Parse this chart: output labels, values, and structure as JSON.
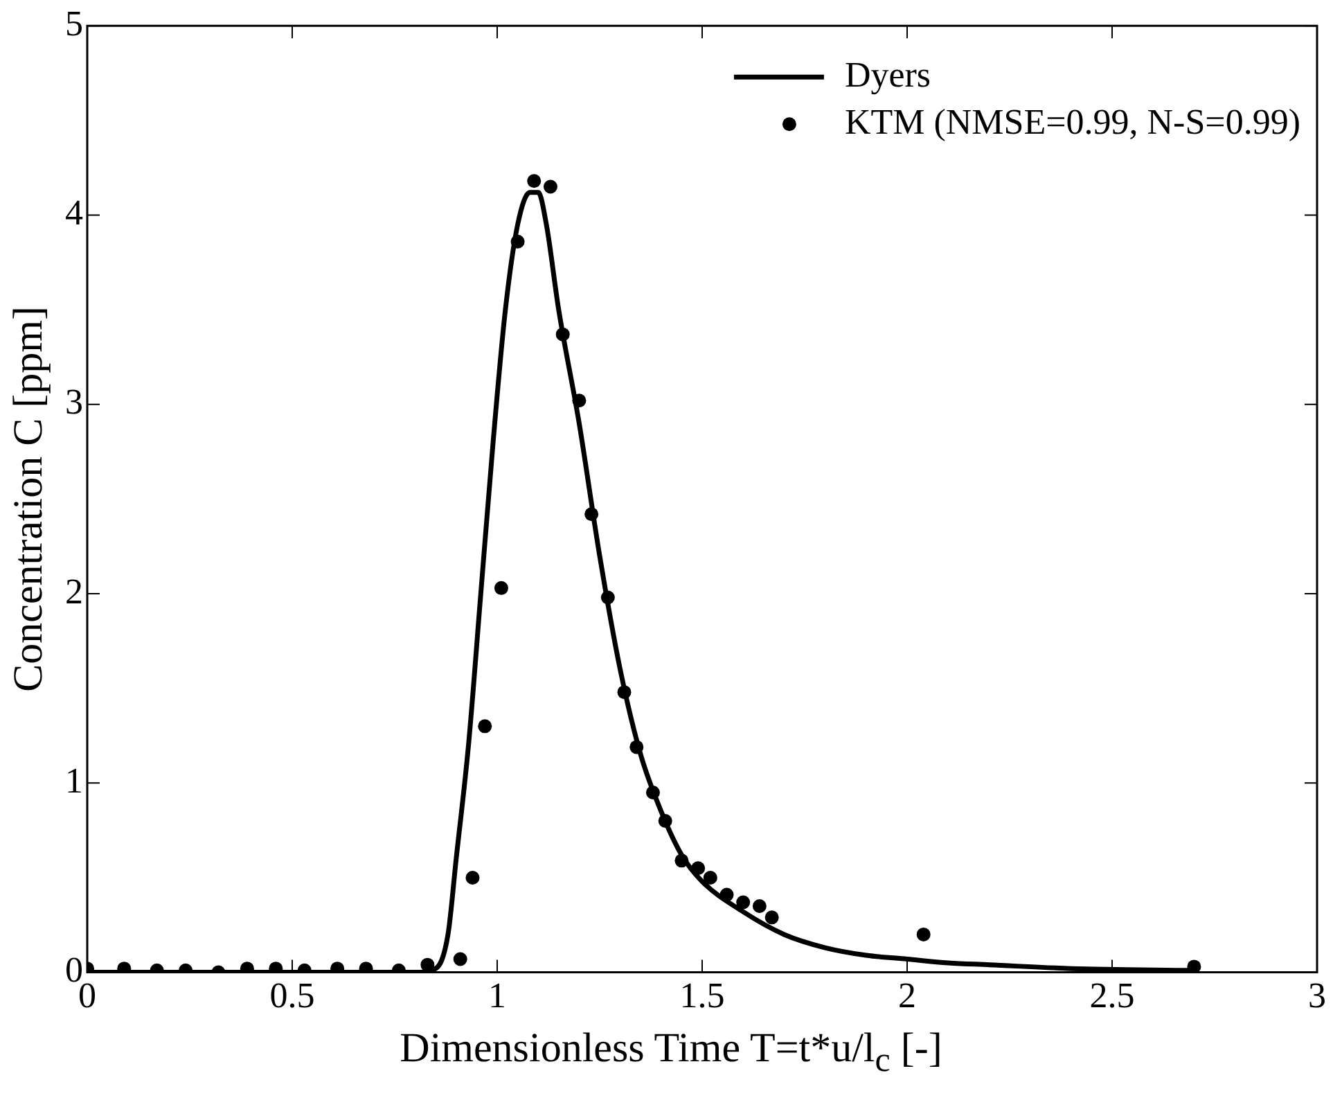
{
  "chart_data": {
    "type": "scatter",
    "xlabel": "Dimensionless Time T=t*u/l$_{c}$ [-]",
    "ylabel": "Concentration C [ppm]",
    "xlim": [
      0,
      3
    ],
    "xticks": [
      0,
      0.5,
      1,
      1.5,
      2,
      2.5,
      3
    ],
    "ylim": [
      0,
      5
    ],
    "yticks": [
      0,
      1,
      2,
      3,
      4,
      5
    ],
    "grid": false,
    "legend": "top right",
    "series": [
      {
        "name": "Dyers",
        "type": "line",
        "color": "#000000",
        "marker": "none",
        "x": [
          0,
          0.2,
          0.4,
          0.6,
          0.8,
          0.85,
          0.88,
          0.9,
          0.93,
          0.96,
          0.99,
          1.02,
          1.05,
          1.08,
          1.1,
          1.12,
          1.15,
          1.2,
          1.25,
          1.3,
          1.35,
          1.4,
          1.45,
          1.5,
          1.6,
          1.7,
          1.8,
          1.9,
          2.0,
          2.1,
          2.2,
          2.4,
          2.7
        ],
        "values": [
          0,
          0,
          0,
          0,
          0,
          0.02,
          0.2,
          0.6,
          1.2,
          2.0,
          2.8,
          3.5,
          3.95,
          4.12,
          4.12,
          3.95,
          3.5,
          2.9,
          2.2,
          1.6,
          1.15,
          0.85,
          0.62,
          0.48,
          0.32,
          0.2,
          0.13,
          0.09,
          0.07,
          0.05,
          0.04,
          0.02,
          0.01
        ]
      },
      {
        "name": "KTM (NMSE=0.99, N-S=0.99)",
        "color": "#000000",
        "marker": "circle",
        "x": [
          0,
          0.09,
          0.17,
          0.24,
          0.32,
          0.39,
          0.46,
          0.53,
          0.61,
          0.68,
          0.76,
          0.83,
          0.91,
          0.94,
          0.97,
          1.01,
          1.05,
          1.09,
          1.13,
          1.16,
          1.2,
          1.23,
          1.27,
          1.31,
          1.34,
          1.38,
          1.41,
          1.45,
          1.49,
          1.52,
          1.56,
          1.6,
          1.64,
          1.67,
          2.04,
          2.7
        ],
        "values": [
          0.02,
          0.02,
          0.01,
          0.01,
          0,
          0.02,
          0.02,
          0.01,
          0.02,
          0.02,
          0.01,
          0.04,
          0.07,
          0.5,
          1.3,
          2.03,
          3.86,
          4.18,
          4.15,
          3.37,
          3.02,
          2.42,
          1.98,
          1.48,
          1.19,
          0.95,
          0.8,
          0.59,
          0.55,
          0.5,
          0.41,
          0.37,
          0.35,
          0.29,
          0.2,
          0.03
        ]
      }
    ]
  }
}
